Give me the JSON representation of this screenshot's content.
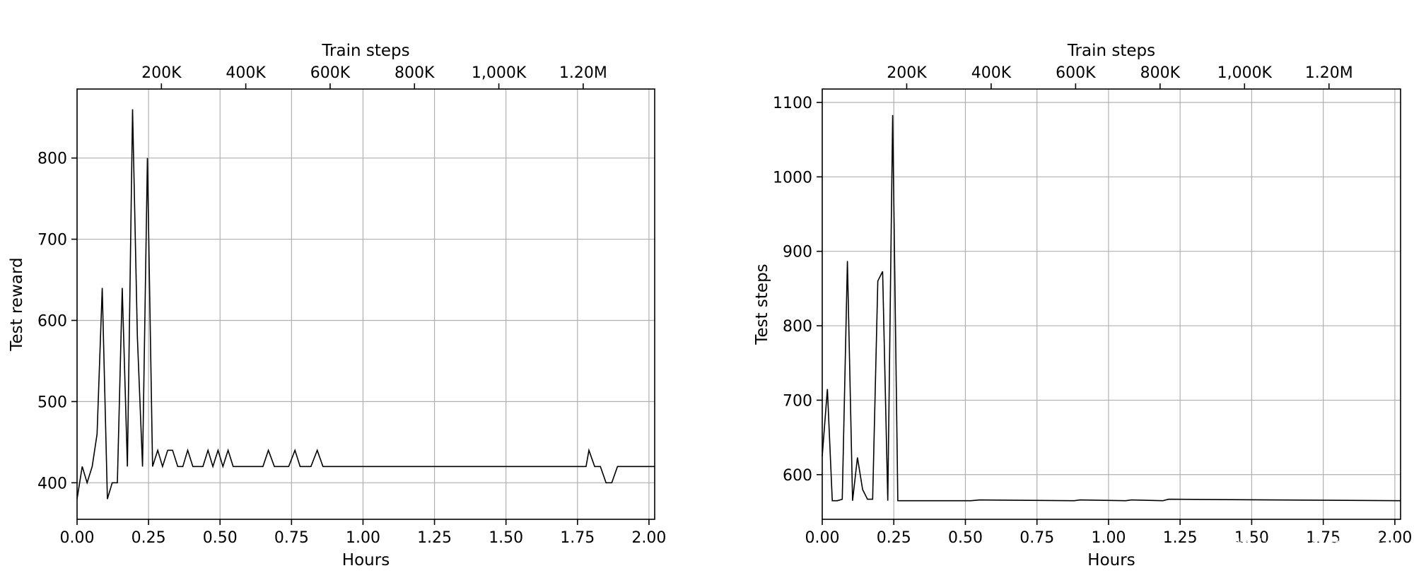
{
  "chart_data": [
    {
      "type": "line",
      "title": "",
      "xlabel": "Hours",
      "ylabel": "Test reward",
      "top_xlabel": "Train steps",
      "xlim": [
        0,
        2.02
      ],
      "ylim": [
        355,
        885
      ],
      "xticks": [
        0,
        0.25,
        0.5,
        0.75,
        1.0,
        1.25,
        1.5,
        1.75,
        2.0
      ],
      "xtick_labels": [
        "0.00",
        "0.25",
        "0.50",
        "0.75",
        "1.00",
        "1.25",
        "1.50",
        "1.75",
        "2.00"
      ],
      "yticks": [
        400,
        500,
        600,
        700,
        800
      ],
      "ytick_labels": [
        "400",
        "500",
        "600",
        "700",
        "800"
      ],
      "top_ticks": [
        0.295,
        0.59,
        0.885,
        1.18,
        1.475,
        1.77
      ],
      "top_tick_labels": [
        "200K",
        "400K",
        "600K",
        "800K",
        "1,000K",
        "1.20M"
      ],
      "grid": true,
      "x": [
        0,
        0.018,
        0.035,
        0.053,
        0.07,
        0.088,
        0.106,
        0.123,
        0.141,
        0.158,
        0.176,
        0.194,
        0.211,
        0.229,
        0.246,
        0.264,
        0.282,
        0.299,
        0.317,
        0.334,
        0.352,
        0.37,
        0.387,
        0.405,
        0.422,
        0.44,
        0.458,
        0.475,
        0.493,
        0.51,
        0.528,
        0.546,
        0.563,
        0.581,
        0.6,
        0.65,
        0.669,
        0.69,
        0.74,
        0.762,
        0.78,
        0.818,
        0.84,
        0.86,
        1.78,
        1.79,
        1.81,
        1.83,
        1.85,
        1.87,
        1.89,
        2.02
      ],
      "y": [
        380,
        420,
        400,
        420,
        460,
        640,
        380,
        400,
        400,
        640,
        420,
        860,
        580,
        420,
        800,
        420,
        440,
        420,
        440,
        440,
        420,
        420,
        440,
        420,
        420,
        420,
        440,
        420,
        440,
        420,
        440,
        420,
        420,
        420,
        420,
        420,
        440,
        420,
        420,
        440,
        420,
        420,
        440,
        420,
        420,
        440,
        420,
        420,
        400,
        400,
        420,
        420
      ]
    },
    {
      "type": "line",
      "title": "",
      "xlabel": "Hours",
      "ylabel": "Test steps",
      "top_xlabel": "Train steps",
      "xlim": [
        0,
        2.02
      ],
      "ylim": [
        540,
        1118
      ],
      "xticks": [
        0,
        0.25,
        0.5,
        0.75,
        1.0,
        1.25,
        1.5,
        1.75,
        2.0
      ],
      "xtick_labels": [
        "0.00",
        "0.25",
        "0.50",
        "0.75",
        "1.00",
        "1.25",
        "1.50",
        "1.75",
        "2.00"
      ],
      "yticks": [
        600,
        700,
        800,
        900,
        1000,
        1100
      ],
      "ytick_labels": [
        "600",
        "700",
        "800",
        "900",
        "1000",
        "1100"
      ],
      "top_ticks": [
        0.295,
        0.59,
        0.885,
        1.18,
        1.475,
        1.77
      ],
      "top_tick_labels": [
        "200K",
        "400K",
        "600K",
        "800K",
        "1,000K",
        "1.20M"
      ],
      "grid": true,
      "x": [
        0,
        0.018,
        0.035,
        0.053,
        0.07,
        0.088,
        0.106,
        0.123,
        0.141,
        0.158,
        0.176,
        0.194,
        0.211,
        0.229,
        0.246,
        0.264,
        0.282,
        0.52,
        0.55,
        0.88,
        0.9,
        1.06,
        1.08,
        1.19,
        1.21,
        2.02
      ],
      "y": [
        625,
        715,
        565,
        565,
        567,
        887,
        565,
        623,
        580,
        567,
        567,
        860,
        873,
        565,
        1083,
        565,
        565,
        565,
        566,
        565,
        566,
        565,
        566,
        565,
        567,
        565
      ]
    }
  ],
  "watermark": "掘金技术社区 @ 布客飞龙"
}
